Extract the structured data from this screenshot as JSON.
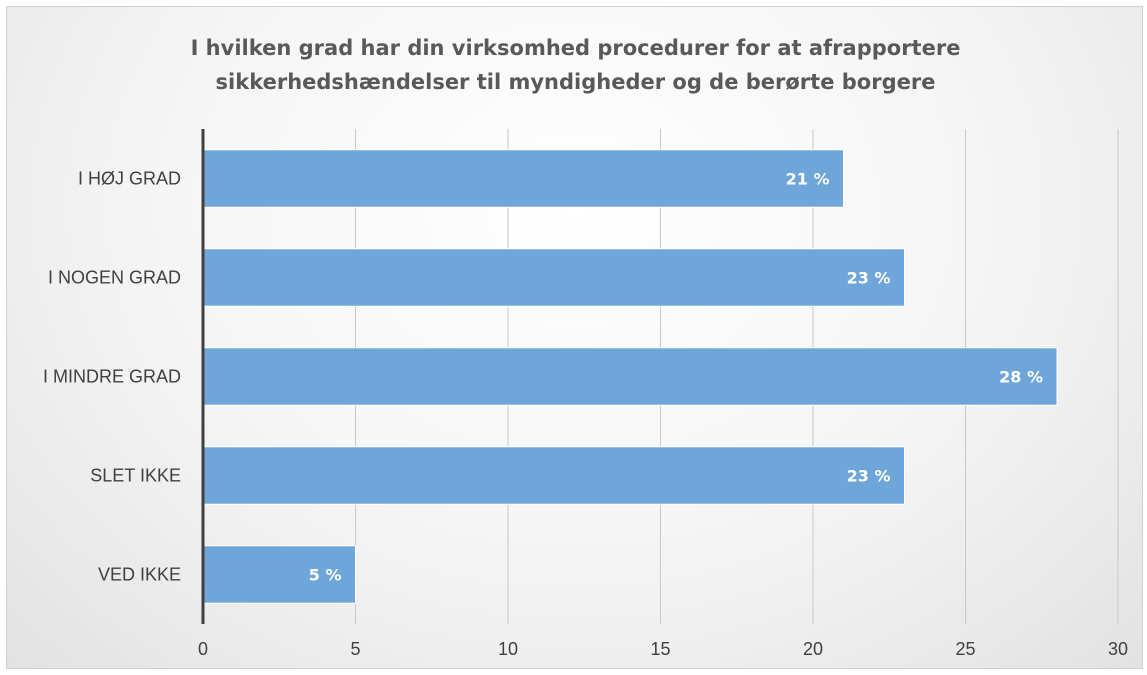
{
  "chart_data": {
    "type": "bar",
    "orientation": "horizontal",
    "title_lines": [
      "I hvilken grad har din virksomhed procedurer for at afrapportere",
      "sikkerhedshændelser til myndigheder og de berørte borgere"
    ],
    "categories": [
      "I HØJ GRAD",
      "I NOGEN GRAD",
      "I MINDRE GRAD",
      "SLET IKKE",
      "VED IKKE"
    ],
    "values": [
      21,
      23,
      28,
      23,
      5
    ],
    "data_labels": [
      "21 %",
      "23 %",
      "28 %",
      "23 %",
      "5 %"
    ],
    "xlim": [
      0,
      30
    ],
    "x_ticks": [
      0,
      5,
      10,
      15,
      20,
      25,
      30
    ],
    "grid": "vertical",
    "legend": "none",
    "bar_color": "#6fa6d9",
    "axis_color": "#404040",
    "grid_color": "#c8c8c8"
  }
}
